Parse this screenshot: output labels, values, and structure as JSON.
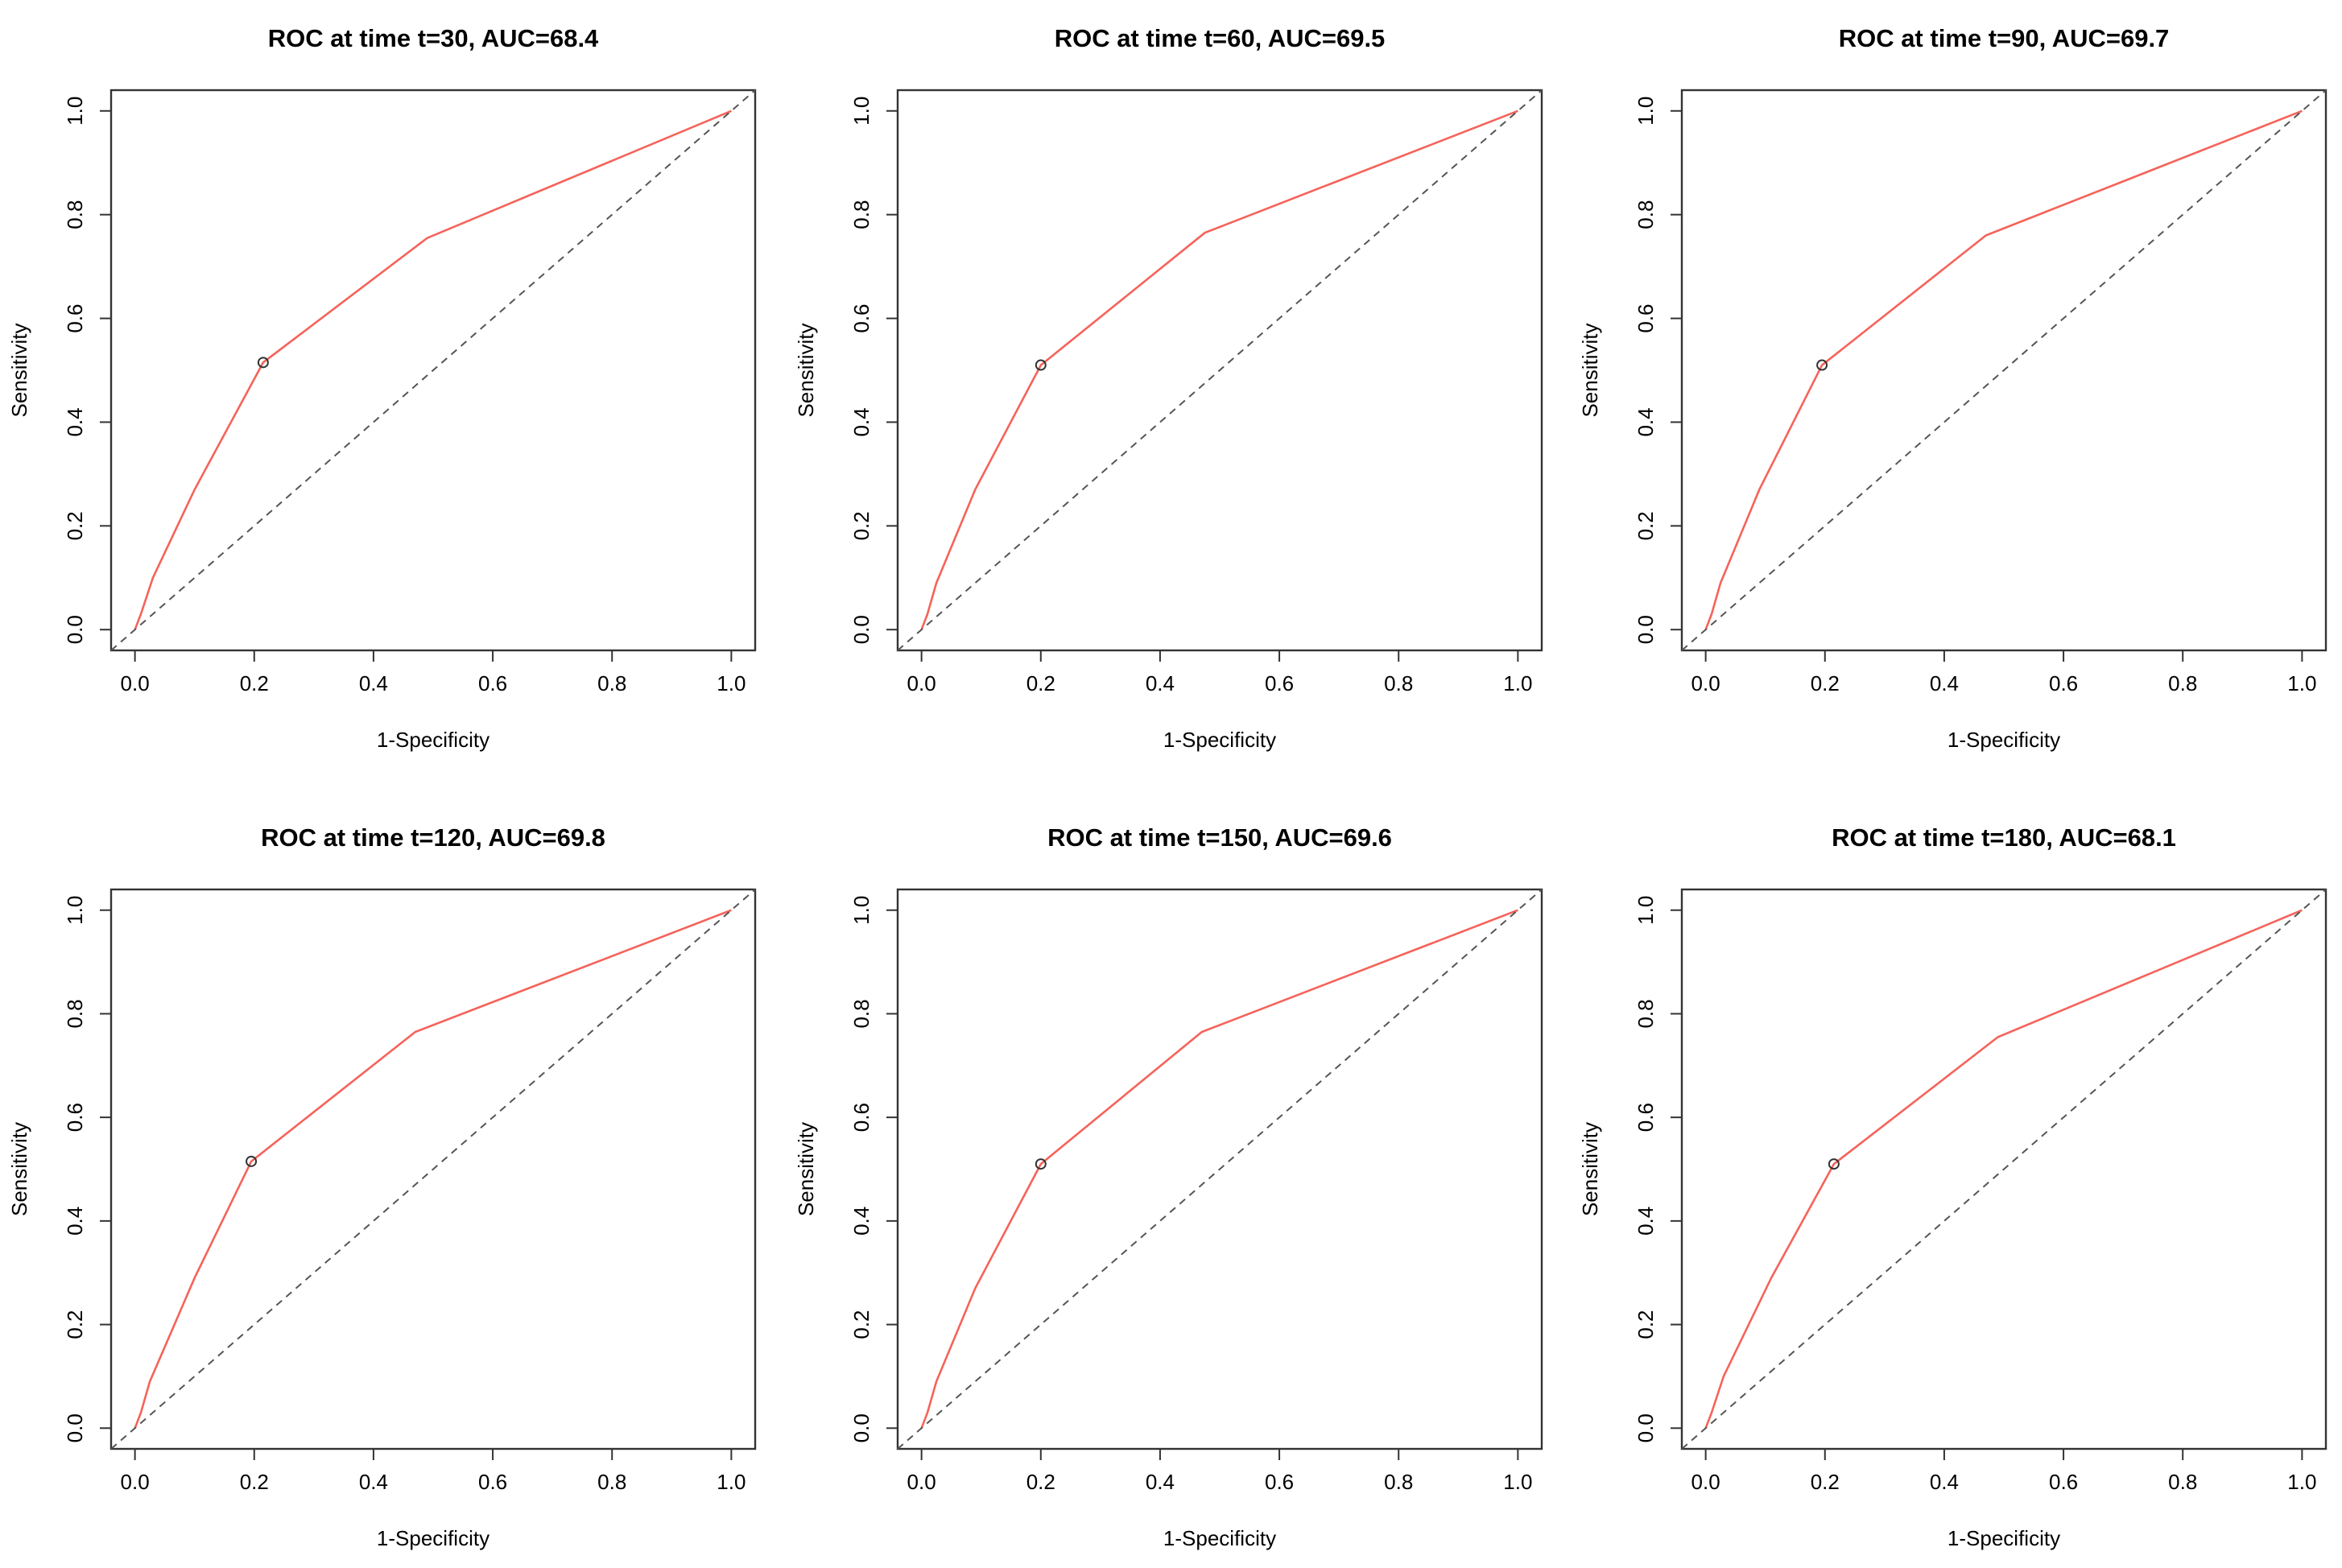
{
  "colors": {
    "roc_line": "#f5635a",
    "reference_line": "#555555",
    "frame": "#333333"
  },
  "chart_data": [
    {
      "type": "line",
      "title": "ROC at time t=30, AUC=68.4",
      "xlabel": "1-Specificity",
      "ylabel": "Sensitivity",
      "xlim": [
        0,
        1
      ],
      "ylim": [
        0,
        1
      ],
      "xticks": [
        "0.0",
        "0.2",
        "0.4",
        "0.6",
        "0.8",
        "1.0"
      ],
      "yticks": [
        "0.0",
        "0.2",
        "0.4",
        "0.6",
        "0.8",
        "1.0"
      ],
      "series": [
        {
          "name": "ROC",
          "x": [
            0,
            0.01,
            0.03,
            0.1,
            0.215,
            0.49,
            1.0
          ],
          "y": [
            0,
            0.03,
            0.1,
            0.27,
            0.515,
            0.755,
            1.0
          ]
        },
        {
          "name": "reference",
          "x": [
            0,
            1
          ],
          "y": [
            0,
            1
          ]
        }
      ],
      "cutoff_point": {
        "x": 0.215,
        "y": 0.515
      }
    },
    {
      "type": "line",
      "title": "ROC at time t=60, AUC=69.5",
      "xlabel": "1-Specificity",
      "ylabel": "Sensitivity",
      "xlim": [
        0,
        1
      ],
      "ylim": [
        0,
        1
      ],
      "xticks": [
        "0.0",
        "0.2",
        "0.4",
        "0.6",
        "0.8",
        "1.0"
      ],
      "yticks": [
        "0.0",
        "0.2",
        "0.4",
        "0.6",
        "0.8",
        "1.0"
      ],
      "series": [
        {
          "name": "ROC",
          "x": [
            0,
            0.01,
            0.025,
            0.09,
            0.2,
            0.475,
            1.0
          ],
          "y": [
            0,
            0.03,
            0.09,
            0.27,
            0.51,
            0.765,
            1.0
          ]
        },
        {
          "name": "reference",
          "x": [
            0,
            1
          ],
          "y": [
            0,
            1
          ]
        }
      ],
      "cutoff_point": {
        "x": 0.2,
        "y": 0.51
      }
    },
    {
      "type": "line",
      "title": "ROC at time t=90, AUC=69.7",
      "xlabel": "1-Specificity",
      "ylabel": "Sensitivity",
      "xlim": [
        0,
        1
      ],
      "ylim": [
        0,
        1
      ],
      "xticks": [
        "0.0",
        "0.2",
        "0.4",
        "0.6",
        "0.8",
        "1.0"
      ],
      "yticks": [
        "0.0",
        "0.2",
        "0.4",
        "0.6",
        "0.8",
        "1.0"
      ],
      "series": [
        {
          "name": "ROC",
          "x": [
            0,
            0.01,
            0.025,
            0.09,
            0.195,
            0.47,
            1.0
          ],
          "y": [
            0,
            0.03,
            0.09,
            0.27,
            0.51,
            0.76,
            1.0
          ]
        },
        {
          "name": "reference",
          "x": [
            0,
            1
          ],
          "y": [
            0,
            1
          ]
        }
      ],
      "cutoff_point": {
        "x": 0.195,
        "y": 0.51
      }
    },
    {
      "type": "line",
      "title": "ROC at time t=120, AUC=69.8",
      "xlabel": "1-Specificity",
      "ylabel": "Sensitivity",
      "xlim": [
        0,
        1
      ],
      "ylim": [
        0,
        1
      ],
      "xticks": [
        "0.0",
        "0.2",
        "0.4",
        "0.6",
        "0.8",
        "1.0"
      ],
      "yticks": [
        "0.0",
        "0.2",
        "0.4",
        "0.6",
        "0.8",
        "1.0"
      ],
      "series": [
        {
          "name": "ROC",
          "x": [
            0,
            0.01,
            0.025,
            0.1,
            0.195,
            0.47,
            1.0
          ],
          "y": [
            0,
            0.03,
            0.09,
            0.29,
            0.515,
            0.765,
            1.0
          ]
        },
        {
          "name": "reference",
          "x": [
            0,
            1
          ],
          "y": [
            0,
            1
          ]
        }
      ],
      "cutoff_point": {
        "x": 0.195,
        "y": 0.515
      }
    },
    {
      "type": "line",
      "title": "ROC at time t=150, AUC=69.6",
      "xlabel": "1-Specificity",
      "ylabel": "Sensitivity",
      "xlim": [
        0,
        1
      ],
      "ylim": [
        0,
        1
      ],
      "xticks": [
        "0.0",
        "0.2",
        "0.4",
        "0.6",
        "0.8",
        "1.0"
      ],
      "yticks": [
        "0.0",
        "0.2",
        "0.4",
        "0.6",
        "0.8",
        "1.0"
      ],
      "series": [
        {
          "name": "ROC",
          "x": [
            0,
            0.01,
            0.025,
            0.09,
            0.2,
            0.47,
            1.0
          ],
          "y": [
            0,
            0.03,
            0.09,
            0.27,
            0.51,
            0.765,
            1.0
          ]
        },
        {
          "name": "reference",
          "x": [
            0,
            1
          ],
          "y": [
            0,
            1
          ]
        }
      ],
      "cutoff_point": {
        "x": 0.2,
        "y": 0.51
      }
    },
    {
      "type": "line",
      "title": "ROC at time t=180, AUC=68.1",
      "xlabel": "1-Specificity",
      "ylabel": "Sensitivity",
      "xlim": [
        0,
        1
      ],
      "ylim": [
        0,
        1
      ],
      "xticks": [
        "0.0",
        "0.2",
        "0.4",
        "0.6",
        "0.8",
        "1.0"
      ],
      "yticks": [
        "0.0",
        "0.2",
        "0.4",
        "0.6",
        "0.8",
        "1.0"
      ],
      "series": [
        {
          "name": "ROC",
          "x": [
            0,
            0.01,
            0.03,
            0.11,
            0.215,
            0.49,
            1.0
          ],
          "y": [
            0,
            0.03,
            0.1,
            0.29,
            0.51,
            0.755,
            1.0
          ]
        },
        {
          "name": "reference",
          "x": [
            0,
            1
          ],
          "y": [
            0,
            1
          ]
        }
      ],
      "cutoff_point": {
        "x": 0.215,
        "y": 0.51
      }
    }
  ]
}
